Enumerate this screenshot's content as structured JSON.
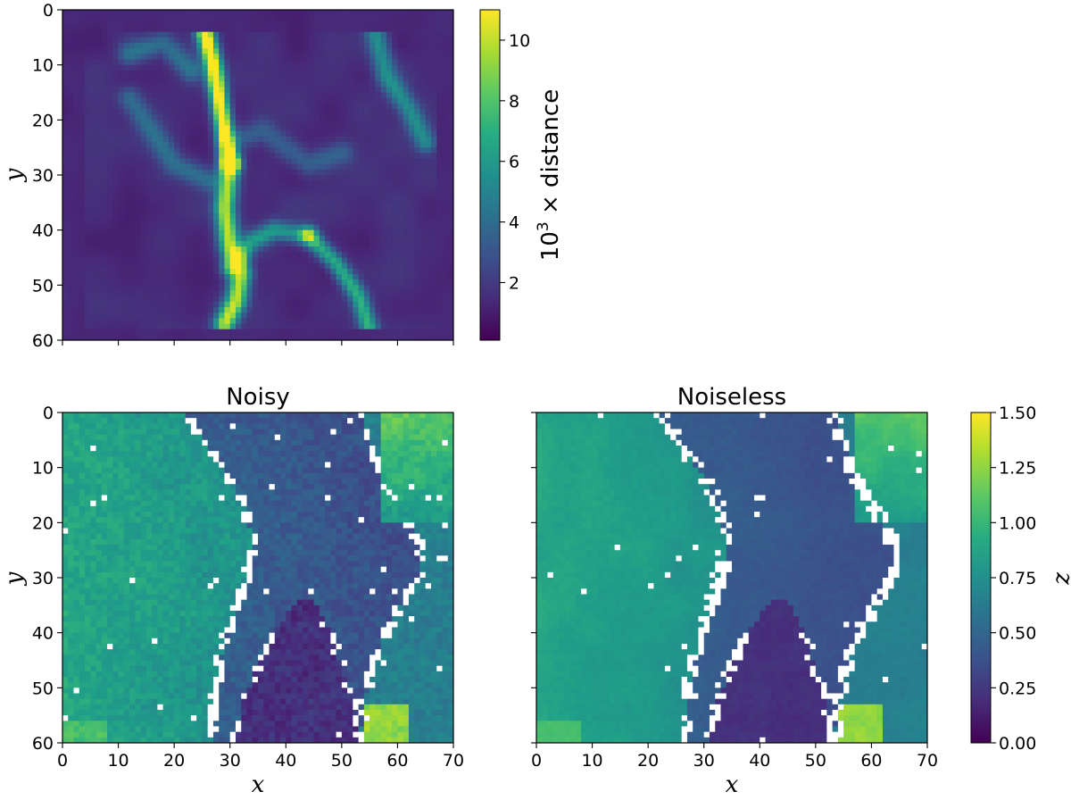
{
  "chart_data": [
    {
      "type": "heatmap",
      "panel": "distance",
      "title": "",
      "xlabel": "",
      "ylabel": "y",
      "xlim": [
        0,
        70
      ],
      "ylim": [
        60,
        0
      ],
      "xticks": [
        0,
        10,
        20,
        30,
        40,
        50,
        60,
        70
      ],
      "yticks": [
        0,
        10,
        20,
        30,
        40,
        50,
        60
      ],
      "x_tick_labels_shown": false,
      "colormap": "viridis",
      "colorbar": {
        "label_main": "10",
        "label_sup": "3",
        "label_rest": " × distance",
        "range": [
          0.1,
          11
        ],
        "ticks": [
          2,
          4,
          6,
          8,
          10
        ]
      },
      "features": {
        "ridges": [
          {
            "points": [
              [
                25.5,
                4
              ],
              [
                27,
                10
              ],
              [
                28,
                16
              ],
              [
                29,
                22
              ],
              [
                30,
                28
              ]
            ],
            "peak": 10.8,
            "width": 1.1
          },
          {
            "points": [
              [
                30,
                28
              ],
              [
                29,
                36
              ],
              [
                30,
                43
              ],
              [
                32,
                48
              ],
              [
                31,
                53
              ],
              [
                29,
                57
              ]
            ],
            "peak": 8.5,
            "width": 1.3
          },
          {
            "points": [
              [
                30,
                47
              ],
              [
                34,
                42
              ],
              [
                38,
                40
              ],
              [
                44,
                41
              ]
            ],
            "peak": 4.5,
            "width": 1.2
          },
          {
            "points": [
              [
                44,
                41
              ],
              [
                49,
                46
              ],
              [
                53,
                52
              ],
              [
                55,
                58
              ]
            ],
            "peak": 5.5,
            "width": 1.1
          },
          {
            "points": [
              [
                56,
                4
              ],
              [
                58,
                12
              ],
              [
                62,
                18
              ],
              [
                65,
                24
              ]
            ],
            "peak": 4.0,
            "width": 1.3
          },
          {
            "points": [
              [
                12,
                8
              ],
              [
                18,
                6
              ],
              [
                23,
                11
              ]
            ],
            "peak": 2.8,
            "width": 1.4
          },
          {
            "points": [
              [
                12,
                16
              ],
              [
                16,
                22
              ],
              [
                20,
                28
              ],
              [
                26,
                31
              ]
            ],
            "peak": 2.6,
            "width": 1.4
          },
          {
            "points": [
              [
                30,
                24
              ],
              [
                36,
                22
              ],
              [
                44,
                28
              ],
              [
                50,
                26
              ]
            ],
            "peak": 2.2,
            "width": 1.5
          }
        ],
        "background": 1.0
      }
    },
    {
      "type": "heatmap",
      "panel": "noisy",
      "title": "Noisy",
      "xlabel": "x",
      "ylabel": "y",
      "xlim": [
        0,
        70
      ],
      "ylim": [
        60,
        0
      ],
      "xticks": [
        0,
        10,
        20,
        30,
        40,
        50,
        60,
        70
      ],
      "yticks": [
        0,
        10,
        20,
        30,
        40,
        50,
        60
      ],
      "colormap": "viridis",
      "missing_color": "#ffffff"
    },
    {
      "type": "heatmap",
      "panel": "noiseless",
      "title": "Noiseless",
      "xlabel": "x",
      "ylabel": "",
      "xlim": [
        0,
        70
      ],
      "ylim": [
        60,
        0
      ],
      "xticks": [
        0,
        10,
        20,
        30,
        40,
        50,
        60,
        70
      ],
      "yticks": [
        0,
        10,
        20,
        30,
        40,
        50,
        60
      ],
      "y_tick_labels_shown": false,
      "colormap": "viridis",
      "missing_color": "#ffffff",
      "colorbar": {
        "label": "z",
        "range": [
          0,
          1.5
        ],
        "ticks": [
          "0.00",
          "0.25",
          "0.50",
          "0.75",
          "1.00",
          "1.25",
          "1.50"
        ]
      }
    }
  ],
  "z_field": {
    "regions": [
      {
        "name": "left-slab",
        "z": 0.85
      },
      {
        "name": "central-valley",
        "z": 0.42
      },
      {
        "name": "right-slab",
        "z": 0.62
      },
      {
        "name": "bottom-trough",
        "z": 0.18
      },
      {
        "name": "top-right-patch",
        "z": 1.05
      },
      {
        "name": "bottom-right-patch",
        "z": 1.2
      }
    ],
    "boundaries": {
      "valley_left": [
        [
          22,
          0
        ],
        [
          26,
          6
        ],
        [
          30,
          12
        ],
        [
          33,
          18
        ],
        [
          34,
          24
        ],
        [
          33,
          30
        ],
        [
          30,
          38
        ],
        [
          28,
          46
        ],
        [
          27,
          54
        ],
        [
          27,
          60
        ]
      ],
      "valley_right": [
        [
          53,
          0
        ],
        [
          55,
          6
        ],
        [
          57,
          12
        ],
        [
          61,
          18
        ],
        [
          64,
          24
        ],
        [
          64,
          30
        ],
        [
          60,
          36
        ],
        [
          57,
          42
        ],
        [
          55,
          48
        ],
        [
          54,
          54
        ],
        [
          53,
          60
        ]
      ],
      "trough_left": [
        [
          42,
          34
        ],
        [
          38,
          40
        ],
        [
          35,
          46
        ],
        [
          32,
          53
        ],
        [
          31,
          60
        ]
      ],
      "trough_right": [
        [
          45,
          34
        ],
        [
          48,
          40
        ],
        [
          50,
          46
        ],
        [
          52,
          53
        ],
        [
          54,
          60
        ]
      ]
    }
  }
}
